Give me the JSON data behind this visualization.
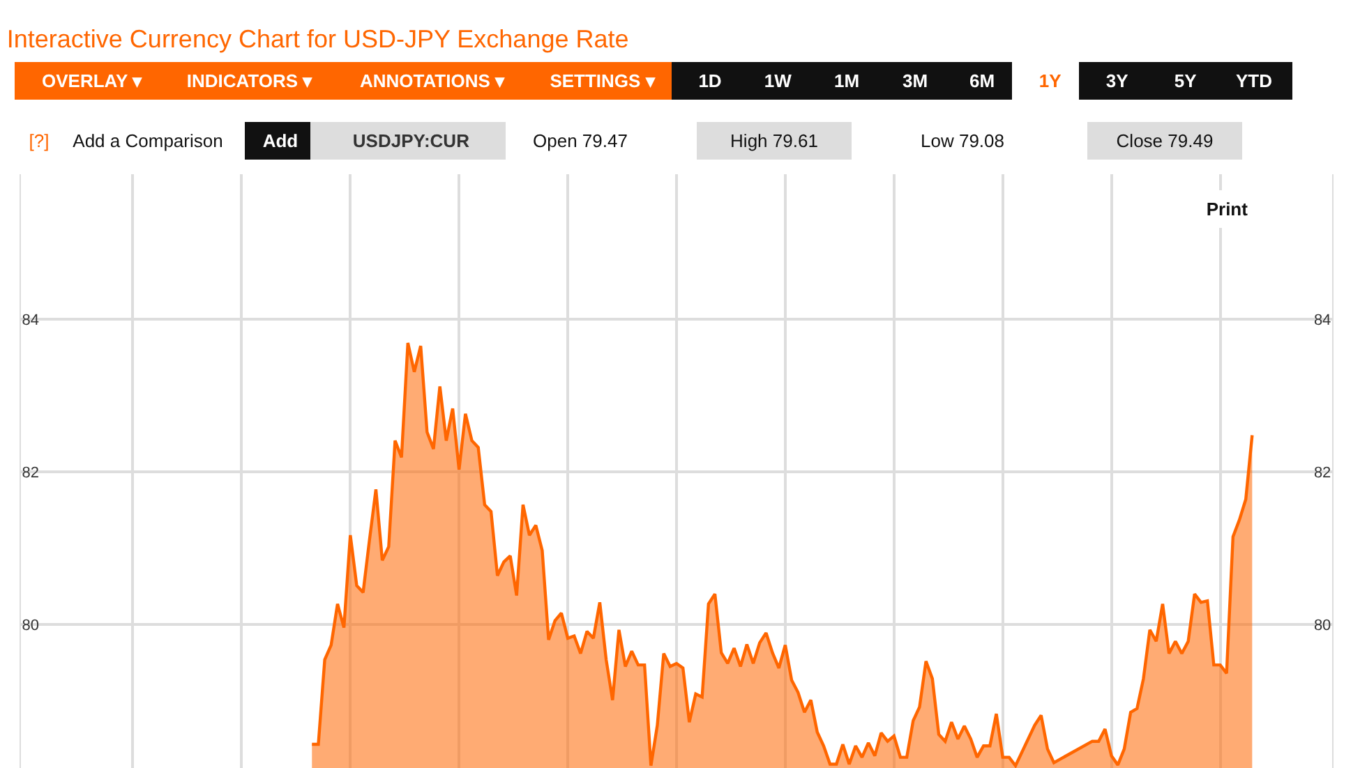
{
  "chart_data": {
    "type": "area",
    "title": "Interactive Currency Chart for USD-JPY Exchange Rate",
    "annotations": [
      "OVERLAY ▾",
      "INDICATORS ▾",
      "ANNOTATIONS ▾",
      "SETTINGS ▾",
      "1D",
      "1W",
      "1M",
      "3M",
      "6M",
      "1Y",
      "3Y",
      "5Y",
      "YTD",
      "[?]",
      "Add a Comparison",
      "Add",
      "USDJPY:CUR",
      "Open 79.47",
      "High 79.61",
      "Low 79.08",
      "Close 79.49",
      "Print"
    ],
    "categories": [
      null,
      null,
      null,
      null,
      null,
      null,
      null,
      null,
      null,
      null,
      null,
      null,
      null,
      null,
      null,
      null,
      null,
      null,
      null,
      null,
      null,
      null,
      null,
      null,
      null,
      null,
      null,
      null,
      null,
      null,
      null,
      null,
      null,
      null,
      null,
      null,
      null,
      null,
      null,
      null,
      null,
      null,
      null,
      null,
      null,
      null,
      null,
      null,
      null,
      null,
      null,
      null,
      null,
      null,
      null,
      null,
      null,
      null,
      null,
      null,
      null,
      null,
      null,
      null,
      null,
      null,
      null,
      null,
      null,
      null,
      null,
      null,
      null,
      null,
      null,
      null,
      null,
      null,
      null,
      null,
      null,
      null,
      null,
      null,
      null,
      null,
      null,
      null,
      null,
      null,
      null,
      null,
      null,
      null,
      null,
      null,
      null,
      null,
      null,
      null,
      null,
      null,
      null,
      null,
      null,
      null,
      null,
      null,
      null,
      null,
      null,
      null,
      null,
      null,
      null,
      null,
      null,
      null,
      null,
      null,
      null,
      null,
      null,
      null,
      null,
      null,
      null,
      null,
      null,
      null,
      null,
      null,
      null,
      null,
      null,
      null,
      null,
      null,
      null,
      null,
      null,
      null,
      null,
      null,
      null,
      null,
      null,
      null,
      null,
      null,
      null,
      null,
      null,
      null,
      null,
      null,
      null,
      null,
      null,
      null,
      null,
      null,
      null,
      null,
      null,
      null,
      null,
      null,
      null,
      null,
      null,
      null,
      null,
      null,
      null,
      null,
      null,
      null,
      null,
      null,
      null,
      null,
      null,
      null,
      null,
      null,
      null,
      null,
      null,
      null,
      null,
      null,
      null,
      null,
      null,
      null,
      null,
      null,
      null,
      null,
      null,
      null,
      null,
      null,
      null
    ],
    "series": [
      {
        "color": "#ff6600",
        "values": [
          null,
          null,
          null,
          null,
          null,
          null,
          null,
          null,
          null,
          null,
          null,
          null,
          null,
          null,
          null,
          null,
          null,
          null,
          null,
          null,
          null,
          null,
          null,
          null,
          null,
          null,
          null,
          null,
          null,
          null,
          null,
          null,
          null,
          null,
          null,
          null,
          null,
          null,
          null,
          null,
          null,
          null,
          null,
          null,
          null,
          78.43,
          78.43,
          79.54,
          79.73,
          80.27,
          79.96,
          81.17,
          80.51,
          80.42,
          81.11,
          81.77,
          80.84,
          81.02,
          82.41,
          82.19,
          83.69,
          83.31,
          83.65,
          82.52,
          82.3,
          83.12,
          82.41,
          82.83,
          82.03,
          82.76,
          82.41,
          82.32,
          81.57,
          81.48,
          80.64,
          80.82,
          80.9,
          80.38,
          81.57,
          81.17,
          81.3,
          80.97,
          79.8,
          80.05,
          80.15,
          79.82,
          79.85,
          79.62,
          79.91,
          79.82,
          80.29,
          79.54,
          79.01,
          79.93,
          79.45,
          79.65,
          79.47,
          79.47,
          78.15,
          78.68,
          79.62,
          79.45,
          79.49,
          79.43,
          78.72,
          79.09,
          79.05,
          80.27,
          80.4,
          79.63,
          79.49,
          79.69,
          79.45,
          79.74,
          79.49,
          79.76,
          79.89,
          79.63,
          79.43,
          79.73,
          79.27,
          79.11,
          78.85,
          79.01,
          78.59,
          78.41,
          78.17,
          78.17,
          78.43,
          78.17,
          78.41,
          78.26,
          78.45,
          78.28,
          78.58,
          78.47,
          78.54,
          78.26,
          78.26,
          78.74,
          78.92,
          79.52,
          79.29,
          78.56,
          78.47,
          78.72,
          78.5,
          78.67,
          78.5,
          78.26,
          78.41,
          78.41,
          78.83,
          78.26,
          78.26,
          78.15,
          null,
          null,
          78.68,
          78.81,
          78.37,
          78.19,
          null,
          null,
          null,
          null,
          null,
          78.47,
          78.47,
          78.63,
          78.28,
          78.16,
          78.37,
          78.85,
          78.9,
          79.29,
          79.93,
          79.78,
          80.27,
          79.62,
          79.78,
          79.62,
          79.78,
          80.4,
          80.29,
          80.31,
          79.47,
          79.47,
          79.36,
          81.15,
          81.37,
          81.64,
          82.48,
          null,
          null,
          null,
          null,
          null,
          null,
          null,
          null,
          null,
          null,
          null,
          null
        ]
      }
    ],
    "ylim": [
      78.12,
      85.9
    ],
    "yticks": [
      80,
      82,
      84
    ],
    "y2lim": [
      78.12,
      85.9
    ],
    "y2ticks": [
      80,
      82,
      84
    ],
    "grid": true,
    "legend": false,
    "tick_labels": "y"
  }
}
